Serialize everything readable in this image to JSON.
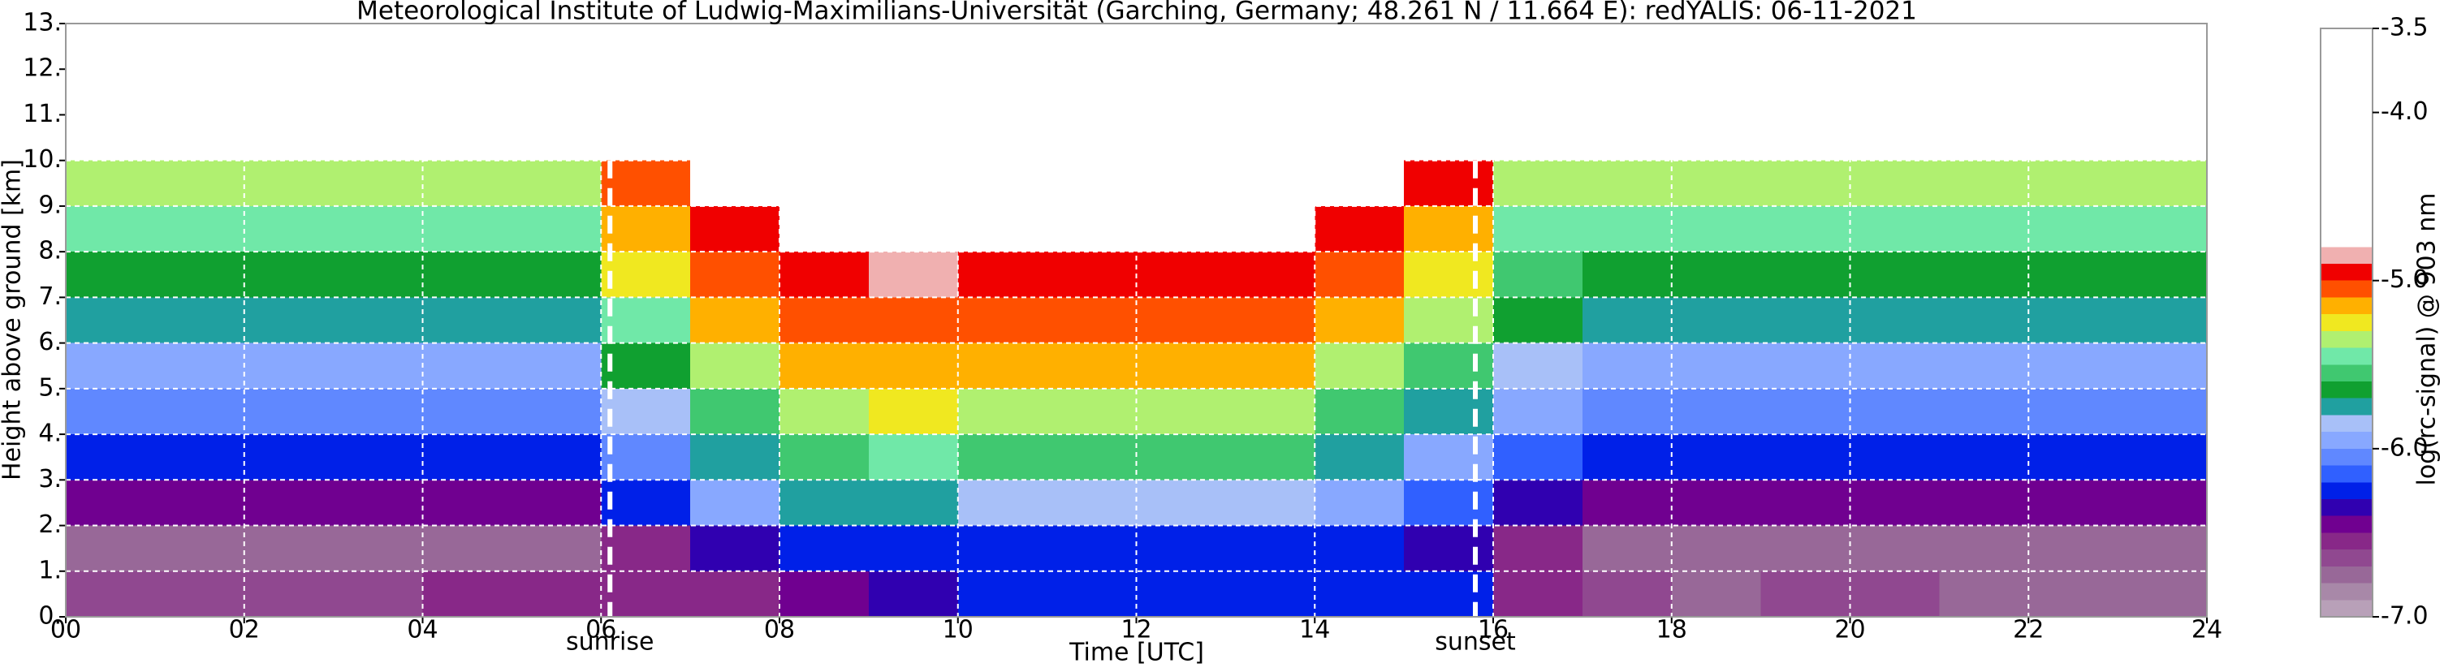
{
  "chart_data": {
    "type": "heatmap",
    "title": "Meteorological Institute of Ludwig-Maximilians-Universität (Garching, Germany; 48.261 N / 11.664 E):    redYALIS: 06-11-2021",
    "xlabel": "Time [UTC]",
    "ylabel": "Height above ground [km]",
    "xlim": [
      0,
      24
    ],
    "ylim": [
      0,
      13
    ],
    "xticks": [
      {
        "value": 0,
        "label": "00"
      },
      {
        "value": 2,
        "label": "02"
      },
      {
        "value": 4,
        "label": "04"
      },
      {
        "value": 6,
        "label": "06"
      },
      {
        "value": 8,
        "label": "08"
      },
      10,
      12,
      14,
      16,
      18,
      20,
      22,
      24
    ],
    "yticks": [
      {
        "value": 0,
        "label": "0."
      },
      {
        "value": 1,
        "label": "1."
      },
      {
        "value": 2,
        "label": "2."
      },
      {
        "value": 3,
        "label": "3."
      },
      {
        "value": 4,
        "label": "4."
      },
      {
        "value": 5,
        "label": "5."
      },
      {
        "value": 6,
        "label": "6."
      },
      {
        "value": 7,
        "label": "7."
      },
      {
        "value": 8,
        "label": "8."
      },
      {
        "value": 9,
        "label": "9."
      },
      {
        "value": 10,
        "label": "10."
      },
      {
        "value": 11,
        "label": "11."
      },
      {
        "value": 12,
        "label": "12."
      },
      {
        "value": 13,
        "label": "13."
      }
    ],
    "grid": true,
    "x_edges": [
      0,
      1,
      2,
      3,
      4,
      5,
      6,
      7,
      8,
      9,
      10,
      11,
      12,
      13,
      14,
      15,
      16,
      17,
      18,
      19,
      20,
      21,
      22,
      23,
      24
    ],
    "y_edges": [
      0,
      1,
      2,
      3,
      4,
      5,
      6,
      7,
      8,
      9,
      10
    ],
    "z": [
      [
        -6.7,
        -6.7,
        -6.7,
        -6.7,
        -6.6,
        -6.6,
        -6.6,
        -6.6,
        -6.5,
        -6.4,
        -6.3,
        -6.3,
        -6.3,
        -6.3,
        -6.3,
        -6.3,
        -6.6,
        -6.7,
        -6.8,
        -6.7,
        -6.7,
        -6.8,
        -6.8,
        -6.8
      ],
      [
        -6.8,
        -6.8,
        -6.8,
        -6.8,
        -6.8,
        -6.8,
        -6.6,
        -6.4,
        -6.3,
        -6.3,
        -6.3,
        -6.3,
        -6.3,
        -6.3,
        -6.3,
        -6.4,
        -6.6,
        -6.8,
        -6.8,
        -6.8,
        -6.8,
        -6.8,
        -6.8,
        -6.8
      ],
      [
        -6.5,
        -6.5,
        -6.5,
        -6.5,
        -6.5,
        -6.5,
        -6.3,
        -6.0,
        -5.8,
        -5.8,
        -5.9,
        -5.9,
        -5.9,
        -5.9,
        -6.0,
        -6.2,
        -6.4,
        -6.5,
        -6.5,
        -6.5,
        -6.5,
        -6.5,
        -6.5,
        -6.5
      ],
      [
        -6.3,
        -6.3,
        -6.3,
        -6.3,
        -6.3,
        -6.3,
        -6.1,
        -5.8,
        -5.6,
        -5.5,
        -5.6,
        -5.6,
        -5.6,
        -5.6,
        -5.8,
        -6.0,
        -6.2,
        -6.3,
        -6.3,
        -6.3,
        -6.3,
        -6.3,
        -6.3,
        -6.3
      ],
      [
        -6.1,
        -6.1,
        -6.1,
        -6.1,
        -6.1,
        -6.1,
        -5.9,
        -5.6,
        -5.4,
        -5.3,
        -5.4,
        -5.4,
        -5.4,
        -5.4,
        -5.6,
        -5.8,
        -6.0,
        -6.1,
        -6.1,
        -6.1,
        -6.1,
        -6.1,
        -6.1,
        -6.1
      ],
      [
        -6.0,
        -6.0,
        -6.0,
        -6.0,
        -6.0,
        -6.0,
        -5.7,
        -5.4,
        -5.2,
        -5.2,
        -5.2,
        -5.2,
        -5.2,
        -5.2,
        -5.4,
        -5.6,
        -5.9,
        -6.0,
        -6.0,
        -6.0,
        -6.0,
        -6.0,
        -6.0,
        -6.0
      ],
      [
        -5.8,
        -5.8,
        -5.8,
        -5.8,
        -5.8,
        -5.8,
        -5.5,
        -5.2,
        -5.1,
        -5.1,
        -5.1,
        -5.1,
        -5.1,
        -5.1,
        -5.2,
        -5.4,
        -5.7,
        -5.8,
        -5.8,
        -5.8,
        -5.8,
        -5.8,
        -5.8,
        -5.8
      ],
      [
        -5.7,
        -5.7,
        -5.7,
        -5.7,
        -5.7,
        -5.7,
        -5.3,
        -5.1,
        -5.0,
        -4.9,
        -5.0,
        -5.0,
        -5.0,
        -5.0,
        -5.1,
        -5.3,
        -5.6,
        -5.7,
        -5.7,
        -5.7,
        -5.7,
        -5.7,
        -5.7,
        -5.7
      ],
      [
        -5.5,
        -5.5,
        -5.5,
        -5.5,
        -5.5,
        -5.5,
        -5.2,
        -5.0,
        -4.8,
        -4.7,
        -4.8,
        -4.8,
        -4.8,
        -4.8,
        -5.0,
        -5.2,
        -5.5,
        -5.5,
        -5.5,
        -5.5,
        -5.5,
        -5.5,
        -5.5,
        -5.5
      ],
      [
        -5.4,
        -5.4,
        -5.4,
        -5.4,
        -5.4,
        -5.4,
        -5.1,
        -4.8,
        -4.5,
        -4.4,
        -4.5,
        -4.5,
        -4.5,
        -4.5,
        -4.8,
        -5.0,
        -5.4,
        -5.4,
        -5.4,
        -5.4,
        -5.4,
        -5.4,
        -5.4,
        -5.4
      ]
    ],
    "annotations": [
      {
        "text": "sunrise",
        "x": 6.1
      },
      {
        "text": "sunset",
        "x": 15.8
      }
    ],
    "colorbar": {
      "label": "log(rc-signal) @ 903 nm",
      "lim": [
        -7,
        -3.5
      ],
      "ticks": [
        {
          "value": -3.5,
          "label": "-3.5"
        },
        {
          "value": -4,
          "label": "-4.0"
        },
        {
          "value": -5,
          "label": "-5.0"
        },
        {
          "value": -6,
          "label": "-6.0"
        },
        {
          "value": -7,
          "label": "-7.0"
        }
      ],
      "levels": [
        -7.0,
        -6.9,
        -6.8,
        -6.7,
        -6.6,
        -6.5,
        -6.4,
        -6.3,
        -6.2,
        -6.1,
        -6.0,
        -5.9,
        -5.8,
        -5.7,
        -5.6,
        -5.5,
        -5.4,
        -5.3,
        -5.2,
        -5.1,
        -5.0,
        -4.9,
        -4.8,
        -3.5
      ],
      "colors": [
        "#b8a0b8",
        "#a888a8",
        "#986898",
        "#904890",
        "#882888",
        "#700090",
        "#3000b0",
        "#0020e8",
        "#3060ff",
        "#6088ff",
        "#88a8ff",
        "#a8c0f8",
        "#20a0a0",
        "#10a030",
        "#40c870",
        "#70e8a8",
        "#b0f070",
        "#f0e820",
        "#ffb000",
        "#ff5000",
        "#f00000",
        "#f0b0b0",
        "#ffffff"
      ]
    }
  }
}
